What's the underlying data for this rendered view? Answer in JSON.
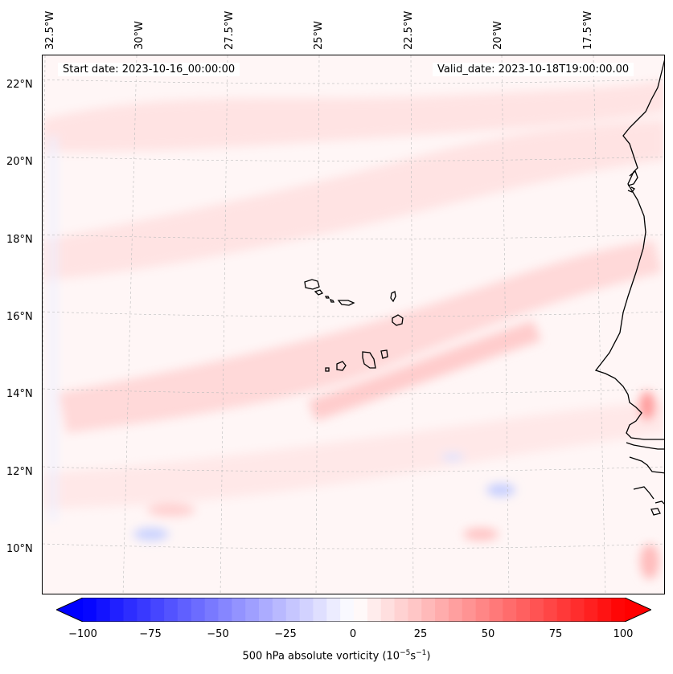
{
  "map": {
    "start_date_text": "Start date: 2023-10-16_00:00:00",
    "valid_date_text": "Valid_date: 2023-10-18T19:00:00.00",
    "lon_labels": [
      "32.5°W",
      "30°W",
      "27.5°W",
      "25°W",
      "22.5°W",
      "20°W",
      "17.5°W"
    ],
    "lat_labels": [
      "22°N",
      "20°N",
      "18°N",
      "16°N",
      "14°N",
      "12°N",
      "10°N"
    ],
    "features": [
      "Cape Verde islands",
      "West African coastline"
    ]
  },
  "colorbar": {
    "ticks": [
      "−100",
      "−75",
      "−50",
      "−25",
      "0",
      "25",
      "50",
      "75",
      "100"
    ],
    "label_main": "500 hPa absolute vorticity (10",
    "label_exp1": "−5",
    "label_mid": "s",
    "label_exp2": "−1",
    "label_end": ")",
    "min": -100,
    "max": 100,
    "step": 5,
    "colors": {
      "negative": "#0000ff",
      "zero": "#ffffff",
      "positive": "#ff0000"
    }
  }
}
